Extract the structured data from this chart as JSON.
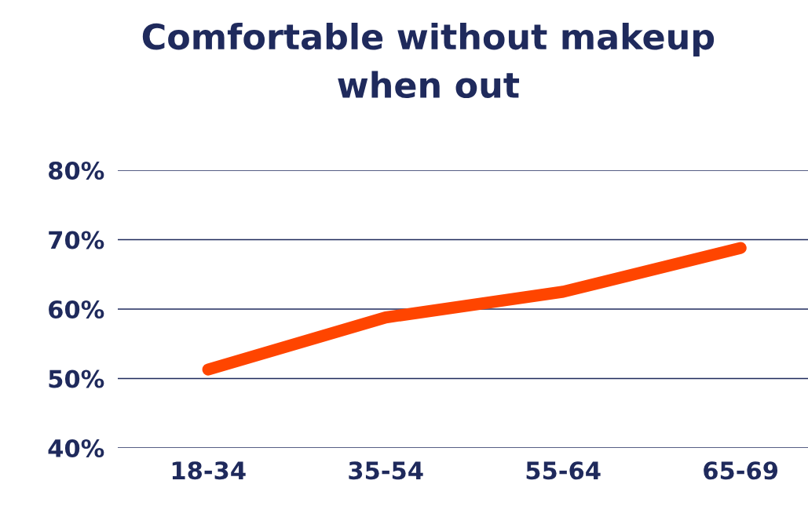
{
  "chart_data": {
    "type": "line",
    "title": "Comfortable without makeup\nwhen out",
    "categories": [
      "18-34",
      "35-54",
      "55-64",
      "65-69"
    ],
    "series": [
      {
        "color": "#ff4500",
        "values": [
          51.3,
          58.8,
          62.5,
          68.8
        ]
      }
    ],
    "ylim": [
      40,
      80
    ],
    "yticks": [
      {
        "value": 40,
        "label": "40%"
      },
      {
        "value": 50,
        "label": "50%"
      },
      {
        "value": 60,
        "label": "60%"
      },
      {
        "value": 70,
        "label": "70%"
      },
      {
        "value": 80,
        "label": "80%"
      }
    ],
    "grid": "y",
    "legend": false,
    "line_style": "solid"
  }
}
